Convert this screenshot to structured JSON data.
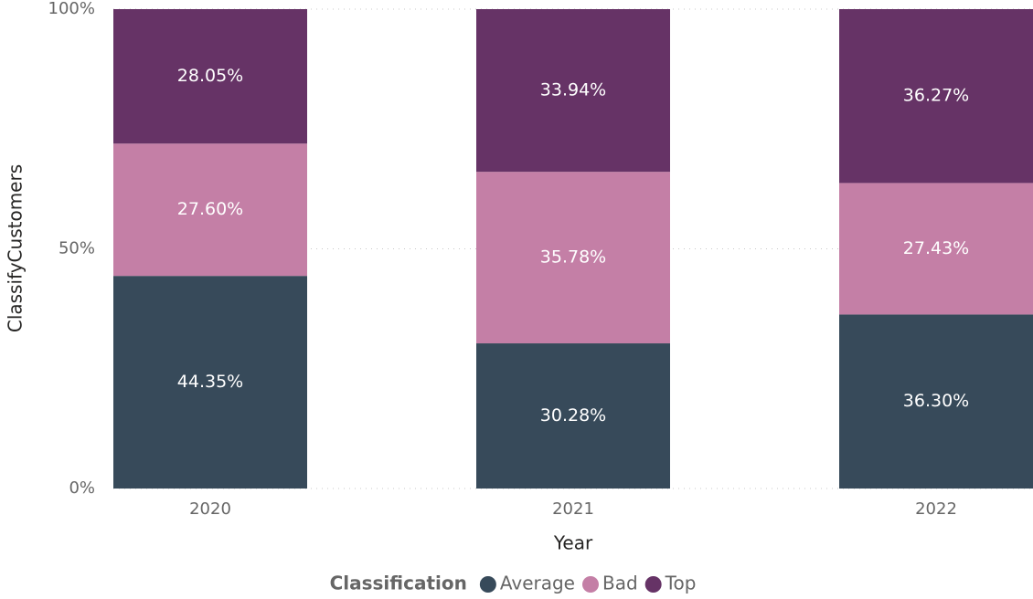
{
  "chart_data": {
    "type": "stacked_bar_100",
    "x_label": "Year",
    "y_label": "ClassifyCustomers",
    "legend_title": "Classification",
    "categories": [
      "2020",
      "2021",
      "2022"
    ],
    "series": [
      {
        "name": "Average",
        "color": "#374a5a",
        "values": [
          44.35,
          30.28,
          36.3
        ],
        "value_labels": [
          "44.35%",
          "30.28%",
          "36.30%"
        ]
      },
      {
        "name": "Bad",
        "color": "#c47fa6",
        "values": [
          27.6,
          35.78,
          27.43
        ],
        "value_labels": [
          "27.60%",
          "35.78%",
          "27.43%"
        ]
      },
      {
        "name": "Top",
        "color": "#663366",
        "values": [
          28.05,
          33.94,
          36.27
        ],
        "value_labels": [
          "28.05%",
          "33.94%",
          "36.27%"
        ]
      }
    ],
    "ylim": [
      0,
      100
    ],
    "yticks": [
      {
        "value": 0,
        "label": "0%"
      },
      {
        "value": 50,
        "label": "50%"
      },
      {
        "value": 100,
        "label": "100%"
      }
    ],
    "grid": true,
    "legend": "bottom"
  }
}
